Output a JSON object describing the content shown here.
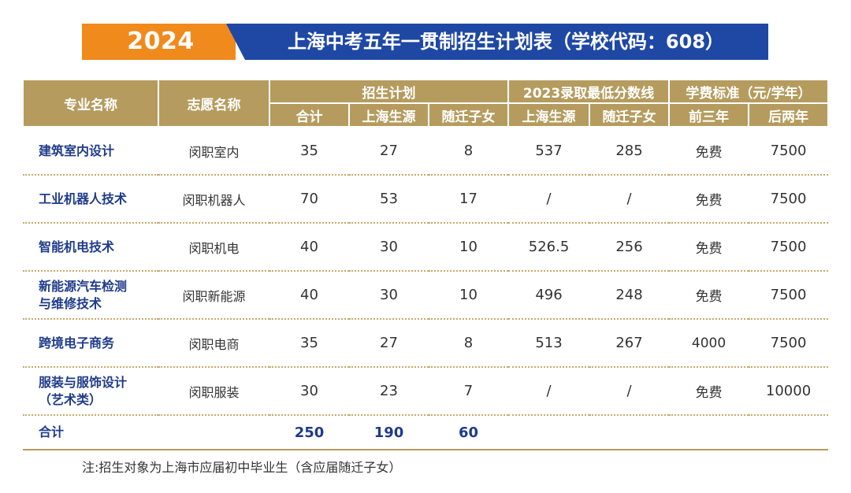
{
  "banner": {
    "year": "2024",
    "title": "上海中考五年一贯制招生计划表（学校代码：608）"
  },
  "colors": {
    "header_bg": "#b59c5e",
    "banner_orange": "#f08a1c",
    "banner_blue": "#1f48a5",
    "major_text": "#1f3b8a"
  },
  "table": {
    "headers": {
      "major": "专业名称",
      "aspiration": "志愿名称",
      "plan_group": "招生计划",
      "score_group": "2023录取最低分数线",
      "fee_group": "学费标准（元/学年）",
      "plan_total": "合计",
      "plan_shanghai": "上海生源",
      "plan_migrant": "随迁子女",
      "score_shanghai": "上海生源",
      "score_migrant": "随迁子女",
      "fee_first3": "前三年",
      "fee_last2": "后两年"
    },
    "rows": [
      {
        "major_line1": "建筑室内设计",
        "major_line2": "",
        "aspiration": "闵职室内",
        "total": "35",
        "shanghai": "27",
        "migrant": "8",
        "score_shanghai": "537",
        "score_migrant": "285",
        "fee_first3": "免费",
        "fee_last2": "7500"
      },
      {
        "major_line1": "工业机器人技术",
        "major_line2": "",
        "aspiration": "闵职机器人",
        "total": "70",
        "shanghai": "53",
        "migrant": "17",
        "score_shanghai": "/",
        "score_migrant": "/",
        "fee_first3": "免费",
        "fee_last2": "7500"
      },
      {
        "major_line1": "智能机电技术",
        "major_line2": "",
        "aspiration": "闵职机电",
        "total": "40",
        "shanghai": "30",
        "migrant": "10",
        "score_shanghai": "526.5",
        "score_migrant": "256",
        "fee_first3": "免费",
        "fee_last2": "7500"
      },
      {
        "major_line1": "新能源汽车检测",
        "major_line2": "与维修技术",
        "aspiration": "闵职新能源",
        "total": "40",
        "shanghai": "30",
        "migrant": "10",
        "score_shanghai": "496",
        "score_migrant": "248",
        "fee_first3": "免费",
        "fee_last2": "7500"
      },
      {
        "major_line1": "跨境电子商务",
        "major_line2": "",
        "aspiration": "闵职电商",
        "total": "35",
        "shanghai": "27",
        "migrant": "8",
        "score_shanghai": "513",
        "score_migrant": "267",
        "fee_first3": "4000",
        "fee_last2": "7500"
      },
      {
        "major_line1": "服装与服饰设计",
        "major_line2": "（艺术类）",
        "aspiration": "闵职服装",
        "total": "30",
        "shanghai": "23",
        "migrant": "7",
        "score_shanghai": "/",
        "score_migrant": "/",
        "fee_first3": "免费",
        "fee_last2": "10000"
      }
    ],
    "totals": {
      "label": "合计",
      "total": "250",
      "shanghai": "190",
      "migrant": "60"
    }
  },
  "note": "注:招生对象为上海市应届初中毕业生（含应届随迁子女）"
}
